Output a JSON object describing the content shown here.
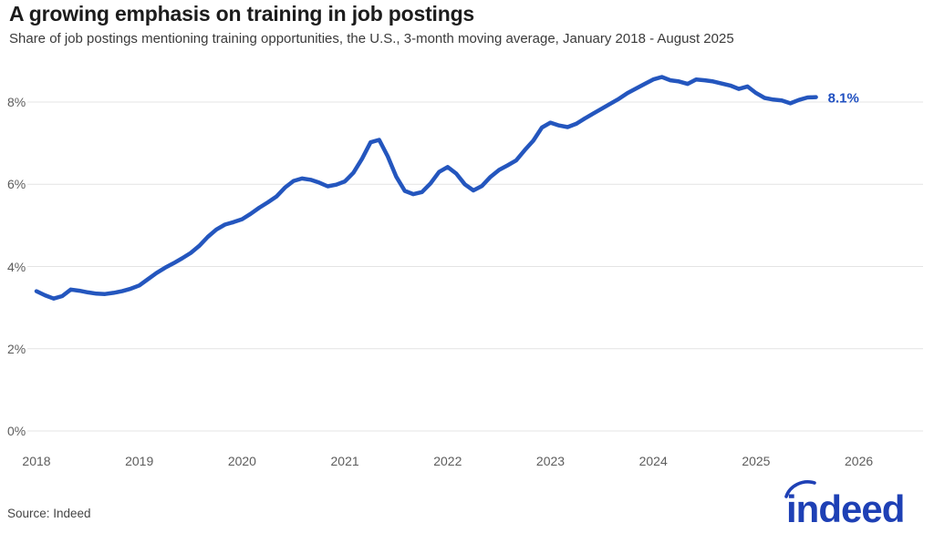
{
  "header": {
    "title": "A growing emphasis on training in job postings",
    "subtitle": "Share of job postings mentioning training opportunities, the U.S., 3-month moving average, January 2018 - August 2025"
  },
  "chart_data": {
    "type": "line",
    "title": "A growing emphasis on training in job postings",
    "subtitle": "Share of job postings mentioning training opportunities, the U.S., 3-month moving average, January 2018 - August 2025",
    "unit": "percent",
    "x_start_month": "2018-01",
    "x_end_month": "2025-08",
    "x_tick_labels": [
      "2018",
      "2019",
      "2020",
      "2021",
      "2022",
      "2023",
      "2024",
      "2025",
      "2026"
    ],
    "y_tick_labels": [
      "0%",
      "2%",
      "4%",
      "6%",
      "8%"
    ],
    "ylim": [
      0,
      9
    ],
    "grid": true,
    "legend": "none",
    "line_color": "#2456BE",
    "end_label": "8.1%",
    "end_label_color": "#2050C0",
    "series": [
      {
        "name": "Share of job postings mentioning training opportunities (3-month moving average)",
        "monthly_values": [
          3.4,
          3.3,
          3.22,
          3.28,
          3.44,
          3.41,
          3.37,
          3.34,
          3.33,
          3.36,
          3.4,
          3.46,
          3.54,
          3.69,
          3.84,
          3.97,
          4.08,
          4.2,
          4.33,
          4.5,
          4.72,
          4.9,
          5.02,
          5.08,
          5.15,
          5.28,
          5.43,
          5.56,
          5.7,
          5.92,
          6.08,
          6.14,
          6.11,
          6.04,
          5.95,
          5.99,
          6.07,
          6.28,
          6.62,
          7.02,
          7.08,
          6.68,
          6.18,
          5.84,
          5.76,
          5.81,
          6.02,
          6.3,
          6.42,
          6.26,
          6.0,
          5.85,
          5.96,
          6.18,
          6.35,
          6.46,
          6.58,
          6.83,
          7.06,
          7.38,
          7.5,
          7.43,
          7.39,
          7.47,
          7.6,
          7.72,
          7.84,
          7.96,
          8.08,
          8.22,
          8.33,
          8.44,
          8.55,
          8.61,
          8.53,
          8.5,
          8.44,
          8.55,
          8.53,
          8.5,
          8.45,
          8.4,
          8.32,
          8.38,
          8.22,
          8.1,
          8.06,
          8.04,
          7.97,
          8.05,
          8.11,
          8.12
        ]
      }
    ]
  },
  "footer": {
    "source": "Source: Indeed",
    "logo_text": "indeed",
    "logo_color": "#1E40B5"
  }
}
